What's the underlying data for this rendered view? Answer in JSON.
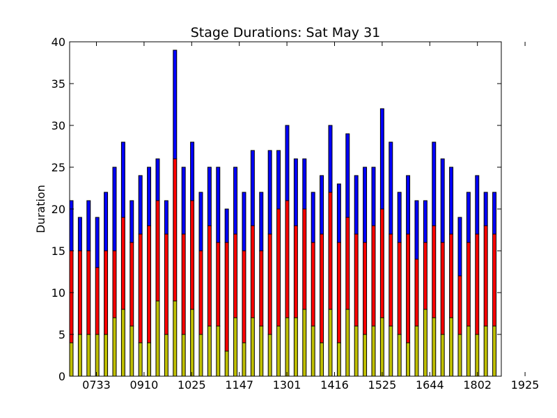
{
  "chart_data": {
    "type": "bar",
    "stacked": true,
    "title": "Stage Durations: Sat May 31",
    "xlabel": "",
    "ylabel": "Duration",
    "ylim": [
      0,
      40
    ],
    "yticks": [
      0,
      5,
      10,
      15,
      20,
      25,
      30,
      35,
      40
    ],
    "xtick_labels": [
      "0733",
      "0910",
      "1025",
      "1147",
      "1301",
      "1416",
      "1525",
      "1644",
      "1802",
      "1925"
    ],
    "grid": false,
    "colors": {
      "stage1": "#bfbf00",
      "stage2": "#ff0000",
      "stage3": "#0000ff"
    },
    "bar_count": 50,
    "series": [
      {
        "values": [
          4,
          5,
          5,
          5,
          5,
          7,
          8,
          6,
          4,
          4,
          9,
          5,
          9,
          5,
          8,
          5,
          6,
          6,
          3,
          7,
          4,
          7,
          6,
          5,
          6,
          7,
          7,
          8,
          6,
          4,
          8,
          4,
          8,
          6,
          5,
          6,
          7,
          6,
          5,
          4,
          6,
          8,
          7,
          5,
          7,
          5,
          6,
          5,
          6,
          6
        ]
      },
      {
        "values": [
          11,
          10,
          10,
          8,
          10,
          8,
          11,
          10,
          13,
          14,
          12,
          12,
          17,
          12,
          13,
          10,
          12,
          10,
          13,
          10,
          11,
          11,
          9,
          12,
          14,
          14,
          11,
          12,
          10,
          13,
          14,
          12,
          11,
          11,
          11,
          12,
          13,
          11,
          11,
          13,
          8,
          8,
          11,
          11,
          10,
          7,
          10,
          12,
          12,
          11
        ]
      },
      {
        "values": [
          6,
          4,
          6,
          6,
          7,
          10,
          9,
          5,
          7,
          7,
          5,
          4,
          13,
          8,
          7,
          7,
          7,
          9,
          4,
          8,
          7,
          9,
          7,
          10,
          7,
          9,
          8,
          6,
          6,
          7,
          8,
          7,
          10,
          7,
          9,
          7,
          12,
          11,
          6,
          7,
          7,
          5,
          10,
          10,
          8,
          7,
          6,
          7,
          4,
          5
        ]
      }
    ]
  }
}
